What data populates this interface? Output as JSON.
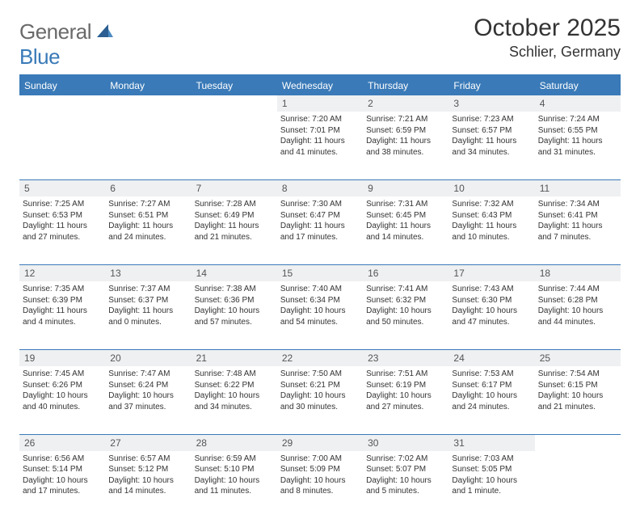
{
  "logo": {
    "word1": "General",
    "word2": "Blue"
  },
  "title": "October 2025",
  "location": "Schlier, Germany",
  "colors": {
    "header_bg": "#3a7ab8",
    "header_text": "#ffffff",
    "daynum_bg": "#eef0f2",
    "text": "#333333",
    "logo_gray": "#6a6a6a",
    "logo_blue": "#3a7ab8"
  },
  "weekdays": [
    "Sunday",
    "Monday",
    "Tuesday",
    "Wednesday",
    "Thursday",
    "Friday",
    "Saturday"
  ],
  "weeks": [
    {
      "nums": [
        "",
        "",
        "",
        "1",
        "2",
        "3",
        "4"
      ],
      "cells": [
        null,
        null,
        null,
        {
          "sr": "Sunrise: 7:20 AM",
          "ss": "Sunset: 7:01 PM",
          "dl": "Daylight: 11 hours and 41 minutes."
        },
        {
          "sr": "Sunrise: 7:21 AM",
          "ss": "Sunset: 6:59 PM",
          "dl": "Daylight: 11 hours and 38 minutes."
        },
        {
          "sr": "Sunrise: 7:23 AM",
          "ss": "Sunset: 6:57 PM",
          "dl": "Daylight: 11 hours and 34 minutes."
        },
        {
          "sr": "Sunrise: 7:24 AM",
          "ss": "Sunset: 6:55 PM",
          "dl": "Daylight: 11 hours and 31 minutes."
        }
      ]
    },
    {
      "nums": [
        "5",
        "6",
        "7",
        "8",
        "9",
        "10",
        "11"
      ],
      "cells": [
        {
          "sr": "Sunrise: 7:25 AM",
          "ss": "Sunset: 6:53 PM",
          "dl": "Daylight: 11 hours and 27 minutes."
        },
        {
          "sr": "Sunrise: 7:27 AM",
          "ss": "Sunset: 6:51 PM",
          "dl": "Daylight: 11 hours and 24 minutes."
        },
        {
          "sr": "Sunrise: 7:28 AM",
          "ss": "Sunset: 6:49 PM",
          "dl": "Daylight: 11 hours and 21 minutes."
        },
        {
          "sr": "Sunrise: 7:30 AM",
          "ss": "Sunset: 6:47 PM",
          "dl": "Daylight: 11 hours and 17 minutes."
        },
        {
          "sr": "Sunrise: 7:31 AM",
          "ss": "Sunset: 6:45 PM",
          "dl": "Daylight: 11 hours and 14 minutes."
        },
        {
          "sr": "Sunrise: 7:32 AM",
          "ss": "Sunset: 6:43 PM",
          "dl": "Daylight: 11 hours and 10 minutes."
        },
        {
          "sr": "Sunrise: 7:34 AM",
          "ss": "Sunset: 6:41 PM",
          "dl": "Daylight: 11 hours and 7 minutes."
        }
      ]
    },
    {
      "nums": [
        "12",
        "13",
        "14",
        "15",
        "16",
        "17",
        "18"
      ],
      "cells": [
        {
          "sr": "Sunrise: 7:35 AM",
          "ss": "Sunset: 6:39 PM",
          "dl": "Daylight: 11 hours and 4 minutes."
        },
        {
          "sr": "Sunrise: 7:37 AM",
          "ss": "Sunset: 6:37 PM",
          "dl": "Daylight: 11 hours and 0 minutes."
        },
        {
          "sr": "Sunrise: 7:38 AM",
          "ss": "Sunset: 6:36 PM",
          "dl": "Daylight: 10 hours and 57 minutes."
        },
        {
          "sr": "Sunrise: 7:40 AM",
          "ss": "Sunset: 6:34 PM",
          "dl": "Daylight: 10 hours and 54 minutes."
        },
        {
          "sr": "Sunrise: 7:41 AM",
          "ss": "Sunset: 6:32 PM",
          "dl": "Daylight: 10 hours and 50 minutes."
        },
        {
          "sr": "Sunrise: 7:43 AM",
          "ss": "Sunset: 6:30 PM",
          "dl": "Daylight: 10 hours and 47 minutes."
        },
        {
          "sr": "Sunrise: 7:44 AM",
          "ss": "Sunset: 6:28 PM",
          "dl": "Daylight: 10 hours and 44 minutes."
        }
      ]
    },
    {
      "nums": [
        "19",
        "20",
        "21",
        "22",
        "23",
        "24",
        "25"
      ],
      "cells": [
        {
          "sr": "Sunrise: 7:45 AM",
          "ss": "Sunset: 6:26 PM",
          "dl": "Daylight: 10 hours and 40 minutes."
        },
        {
          "sr": "Sunrise: 7:47 AM",
          "ss": "Sunset: 6:24 PM",
          "dl": "Daylight: 10 hours and 37 minutes."
        },
        {
          "sr": "Sunrise: 7:48 AM",
          "ss": "Sunset: 6:22 PM",
          "dl": "Daylight: 10 hours and 34 minutes."
        },
        {
          "sr": "Sunrise: 7:50 AM",
          "ss": "Sunset: 6:21 PM",
          "dl": "Daylight: 10 hours and 30 minutes."
        },
        {
          "sr": "Sunrise: 7:51 AM",
          "ss": "Sunset: 6:19 PM",
          "dl": "Daylight: 10 hours and 27 minutes."
        },
        {
          "sr": "Sunrise: 7:53 AM",
          "ss": "Sunset: 6:17 PM",
          "dl": "Daylight: 10 hours and 24 minutes."
        },
        {
          "sr": "Sunrise: 7:54 AM",
          "ss": "Sunset: 6:15 PM",
          "dl": "Daylight: 10 hours and 21 minutes."
        }
      ]
    },
    {
      "nums": [
        "26",
        "27",
        "28",
        "29",
        "30",
        "31",
        ""
      ],
      "cells": [
        {
          "sr": "Sunrise: 6:56 AM",
          "ss": "Sunset: 5:14 PM",
          "dl": "Daylight: 10 hours and 17 minutes."
        },
        {
          "sr": "Sunrise: 6:57 AM",
          "ss": "Sunset: 5:12 PM",
          "dl": "Daylight: 10 hours and 14 minutes."
        },
        {
          "sr": "Sunrise: 6:59 AM",
          "ss": "Sunset: 5:10 PM",
          "dl": "Daylight: 10 hours and 11 minutes."
        },
        {
          "sr": "Sunrise: 7:00 AM",
          "ss": "Sunset: 5:09 PM",
          "dl": "Daylight: 10 hours and 8 minutes."
        },
        {
          "sr": "Sunrise: 7:02 AM",
          "ss": "Sunset: 5:07 PM",
          "dl": "Daylight: 10 hours and 5 minutes."
        },
        {
          "sr": "Sunrise: 7:03 AM",
          "ss": "Sunset: 5:05 PM",
          "dl": "Daylight: 10 hours and 1 minute."
        },
        null
      ]
    }
  ]
}
